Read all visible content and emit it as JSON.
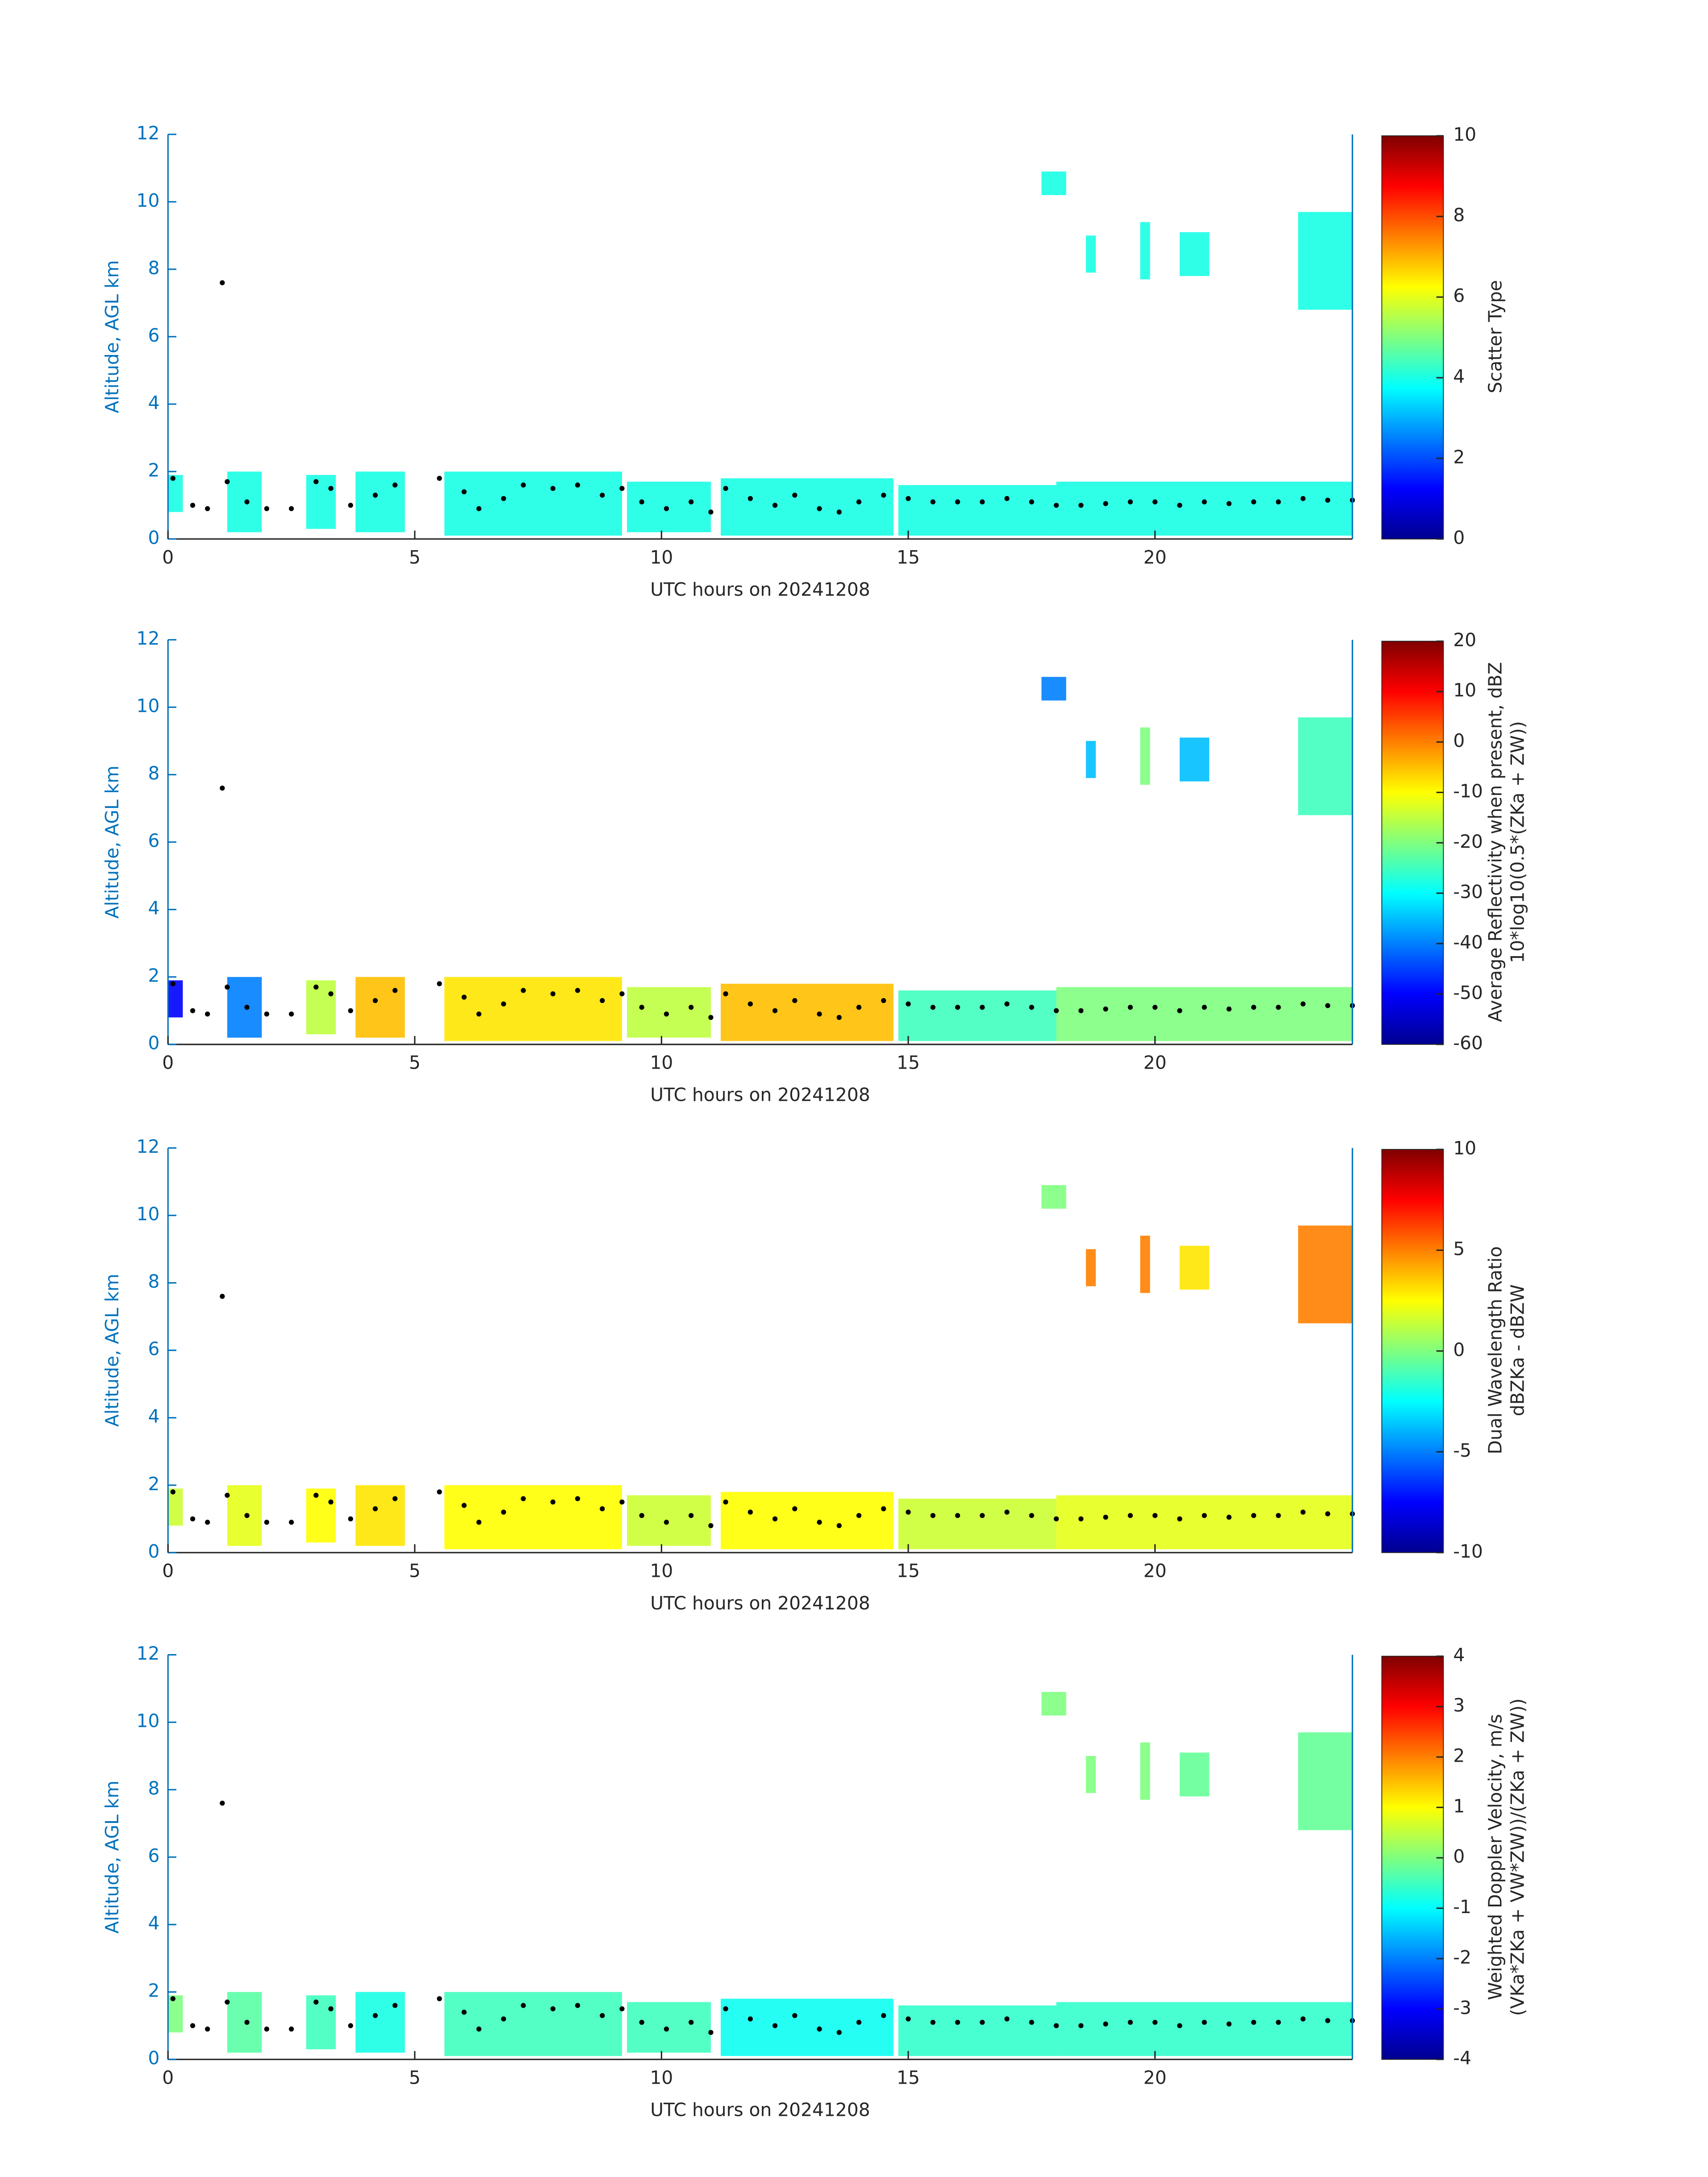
{
  "chart_data": [
    {
      "type": "radar",
      "xlabel": "UTC hours on 20241208",
      "ylabel": "Altitude, AGL km",
      "xlim": [
        0,
        24
      ],
      "xticks": [
        0,
        5,
        10,
        15,
        20
      ],
      "ylim": [
        0,
        12
      ],
      "yticks": [
        0,
        2,
        4,
        6,
        8,
        10,
        12
      ],
      "clim": [
        0,
        10
      ],
      "cticks": [
        0,
        2,
        4,
        6,
        8,
        10
      ],
      "clabel": [
        "Scatter Type"
      ],
      "echoes": {
        "x0": [
          0,
          1.2,
          2.8,
          3.8,
          5.6,
          9.3,
          11.2,
          14.8,
          18,
          17.7,
          18.6,
          19.7,
          20.5,
          22.9
        ],
        "x1": [
          0.3,
          1.9,
          3.4,
          4.8,
          9.2,
          11,
          14.7,
          18,
          24,
          18.2,
          18.8,
          19.9,
          21.1,
          24
        ],
        "base": [
          0.8,
          0.2,
          0.3,
          0.2,
          0.1,
          0.2,
          0.1,
          0.1,
          0.1,
          10.2,
          7.9,
          7.7,
          7.8,
          6.8
        ],
        "top": [
          1.9,
          2.0,
          1.9,
          2.0,
          2.0,
          1.7,
          1.8,
          1.6,
          1.7,
          10.9,
          9.0,
          9.4,
          9.1,
          9.7
        ],
        "values": [
          4,
          4,
          4,
          4,
          4,
          4,
          4,
          4,
          4,
          4,
          4,
          4,
          4,
          4
        ]
      },
      "cloud_base": {
        "x": [
          0.1,
          0.5,
          0.8,
          1.1,
          1.2,
          1.6,
          2.0,
          2.5,
          3.0,
          3.3,
          3.7,
          4.2,
          4.6,
          5.5,
          6.0,
          6.3,
          6.8,
          7.2,
          7.8,
          8.3,
          8.8,
          9.2,
          9.6,
          10.1,
          10.6,
          11.0,
          11.3,
          11.8,
          12.3,
          12.7,
          13.2,
          13.6,
          14.0,
          14.5,
          15.0,
          15.5,
          16,
          16.5,
          17,
          17.5,
          18,
          18.5,
          19,
          19.5,
          20,
          20.5,
          21,
          21.5,
          22,
          22.5,
          23,
          23.5,
          24
        ],
        "y": [
          1.8,
          1.0,
          0.9,
          7.6,
          1.7,
          1.1,
          0.9,
          0.9,
          1.7,
          1.5,
          1.0,
          1.3,
          1.6,
          1.8,
          1.4,
          0.9,
          1.2,
          1.6,
          1.5,
          1.6,
          1.3,
          1.5,
          1.1,
          0.9,
          1.1,
          0.8,
          1.5,
          1.2,
          1.0,
          1.3,
          0.9,
          0.8,
          1.1,
          1.3,
          1.2,
          1.1,
          1.1,
          1.1,
          1.2,
          1.1,
          1.0,
          1.0,
          1.05,
          1.1,
          1.1,
          1.0,
          1.1,
          1.05,
          1.1,
          1.1,
          1.2,
          1.15,
          1.15
        ]
      }
    },
    {
      "type": "radar",
      "xlabel": "UTC hours on 20241208",
      "ylabel": "Altitude, AGL km",
      "xlim": [
        0,
        24
      ],
      "xticks": [
        0,
        5,
        10,
        15,
        20
      ],
      "ylim": [
        0,
        12
      ],
      "yticks": [
        0,
        2,
        4,
        6,
        8,
        10,
        12
      ],
      "clim": [
        -60,
        20
      ],
      "cticks": [
        -60,
        -50,
        -40,
        -30,
        -20,
        -10,
        0,
        10,
        20
      ],
      "clabel": [
        "Average Reflectivity when present, dBZ",
        "10*log10(0.5*(ZKa + ZW))"
      ],
      "echoes": {
        "x0": [
          0,
          1.2,
          2.8,
          3.8,
          5.6,
          9.3,
          11.2,
          14.8,
          18,
          17.7,
          18.6,
          19.7,
          20.5,
          22.9
        ],
        "x1": [
          0.3,
          1.9,
          3.4,
          4.8,
          9.2,
          11,
          14.7,
          18,
          24,
          18.2,
          18.8,
          19.9,
          21.1,
          24
        ],
        "base": [
          0.8,
          0.2,
          0.3,
          0.2,
          0.1,
          0.2,
          0.1,
          0.1,
          0.1,
          10.2,
          7.9,
          7.7,
          7.8,
          6.8
        ],
        "top": [
          1.9,
          2.0,
          1.9,
          2.0,
          2.0,
          1.7,
          1.8,
          1.6,
          1.7,
          10.9,
          9.0,
          9.4,
          9.1,
          9.7
        ],
        "values": [
          -50,
          -40,
          -15,
          -5,
          -8,
          -15,
          -5,
          -25,
          -20,
          -40,
          -35,
          -20,
          -35,
          -25
        ]
      },
      "cloud_base": {
        "x": [
          0.1,
          0.5,
          0.8,
          1.1,
          1.2,
          1.6,
          2.0,
          2.5,
          3.0,
          3.3,
          3.7,
          4.2,
          4.6,
          5.5,
          6.0,
          6.3,
          6.8,
          7.2,
          7.8,
          8.3,
          8.8,
          9.2,
          9.6,
          10.1,
          10.6,
          11.0,
          11.3,
          11.8,
          12.3,
          12.7,
          13.2,
          13.6,
          14.0,
          14.5,
          15.0,
          15.5,
          16,
          16.5,
          17,
          17.5,
          18,
          18.5,
          19,
          19.5,
          20,
          20.5,
          21,
          21.5,
          22,
          22.5,
          23,
          23.5,
          24
        ],
        "y": [
          1.8,
          1.0,
          0.9,
          7.6,
          1.7,
          1.1,
          0.9,
          0.9,
          1.7,
          1.5,
          1.0,
          1.3,
          1.6,
          1.8,
          1.4,
          0.9,
          1.2,
          1.6,
          1.5,
          1.6,
          1.3,
          1.5,
          1.1,
          0.9,
          1.1,
          0.8,
          1.5,
          1.2,
          1.0,
          1.3,
          0.9,
          0.8,
          1.1,
          1.3,
          1.2,
          1.1,
          1.1,
          1.1,
          1.2,
          1.1,
          1.0,
          1.0,
          1.05,
          1.1,
          1.1,
          1.0,
          1.1,
          1.05,
          1.1,
          1.1,
          1.2,
          1.15,
          1.15
        ]
      }
    },
    {
      "type": "radar",
      "xlabel": "UTC hours on 20241208",
      "ylabel": "Altitude, AGL km",
      "xlim": [
        0,
        24
      ],
      "xticks": [
        0,
        5,
        10,
        15,
        20
      ],
      "ylim": [
        0,
        12
      ],
      "yticks": [
        0,
        2,
        4,
        6,
        8,
        10,
        12
      ],
      "clim": [
        -10,
        10
      ],
      "cticks": [
        -10,
        -5,
        0,
        5,
        10
      ],
      "clabel": [
        "Dual Wavelength Ratio",
        "dBZKa - dBZW"
      ],
      "echoes": {
        "x0": [
          0,
          1.2,
          2.8,
          3.8,
          5.6,
          9.3,
          11.2,
          14.8,
          18,
          17.7,
          18.6,
          19.7,
          20.5,
          22.9
        ],
        "x1": [
          0.3,
          1.9,
          3.4,
          4.8,
          9.2,
          11,
          14.7,
          18,
          24,
          18.2,
          18.8,
          19.9,
          21.1,
          24
        ],
        "base": [
          0.8,
          0.2,
          0.3,
          0.2,
          0.1,
          0.2,
          0.1,
          0.1,
          0.1,
          10.2,
          7.9,
          7.7,
          7.8,
          6.8
        ],
        "top": [
          1.9,
          2.0,
          1.9,
          2.0,
          2.0,
          1.7,
          1.8,
          1.6,
          1.7,
          10.9,
          9.0,
          9.4,
          9.1,
          9.7
        ],
        "values": [
          1.5,
          2,
          2.5,
          3,
          2.5,
          1.5,
          2.5,
          1.5,
          2,
          0,
          5,
          5,
          3,
          5
        ]
      },
      "cloud_base": {
        "x": [
          0.1,
          0.5,
          0.8,
          1.1,
          1.2,
          1.6,
          2.0,
          2.5,
          3.0,
          3.3,
          3.7,
          4.2,
          4.6,
          5.5,
          6.0,
          6.3,
          6.8,
          7.2,
          7.8,
          8.3,
          8.8,
          9.2,
          9.6,
          10.1,
          10.6,
          11.0,
          11.3,
          11.8,
          12.3,
          12.7,
          13.2,
          13.6,
          14.0,
          14.5,
          15.0,
          15.5,
          16,
          16.5,
          17,
          17.5,
          18,
          18.5,
          19,
          19.5,
          20,
          20.5,
          21,
          21.5,
          22,
          22.5,
          23,
          23.5,
          24
        ],
        "y": [
          1.8,
          1.0,
          0.9,
          7.6,
          1.7,
          1.1,
          0.9,
          0.9,
          1.7,
          1.5,
          1.0,
          1.3,
          1.6,
          1.8,
          1.4,
          0.9,
          1.2,
          1.6,
          1.5,
          1.6,
          1.3,
          1.5,
          1.1,
          0.9,
          1.1,
          0.8,
          1.5,
          1.2,
          1.0,
          1.3,
          0.9,
          0.8,
          1.1,
          1.3,
          1.2,
          1.1,
          1.1,
          1.1,
          1.2,
          1.1,
          1.0,
          1.0,
          1.05,
          1.1,
          1.1,
          1.0,
          1.1,
          1.05,
          1.1,
          1.1,
          1.2,
          1.15,
          1.15
        ]
      }
    },
    {
      "type": "radar",
      "xlabel": "UTC hours on 20241208",
      "ylabel": "Altitude, AGL km",
      "xlim": [
        0,
        24
      ],
      "xticks": [
        0,
        5,
        10,
        15,
        20
      ],
      "ylim": [
        0,
        12
      ],
      "yticks": [
        0,
        2,
        4,
        6,
        8,
        10,
        12
      ],
      "clim": [
        -4,
        4
      ],
      "cticks": [
        -4,
        -3,
        -2,
        -1,
        0,
        1,
        2,
        3,
        4
      ],
      "clabel": [
        "Weighted Doppler Velocity, m/s",
        "(VKa*ZKa + VW*ZW))/(ZKa + ZW))"
      ],
      "echoes": {
        "x0": [
          0,
          1.2,
          2.8,
          3.8,
          5.6,
          9.3,
          11.2,
          14.8,
          18,
          17.7,
          18.6,
          19.7,
          20.5,
          22.9
        ],
        "x1": [
          0.3,
          1.9,
          3.4,
          4.8,
          9.2,
          11,
          14.7,
          18,
          24,
          18.2,
          18.8,
          19.9,
          21.1,
          24
        ],
        "base": [
          0.8,
          0.2,
          0.3,
          0.2,
          0.1,
          0.2,
          0.1,
          0.1,
          0.1,
          10.2,
          7.9,
          7.7,
          7.8,
          6.8
        ],
        "top": [
          1.9,
          2.0,
          1.9,
          2.0,
          2.0,
          1.7,
          1.8,
          1.6,
          1.7,
          10.9,
          9.0,
          9.4,
          9.1,
          9.7
        ],
        "values": [
          0,
          -0.3,
          -0.5,
          -0.8,
          -0.5,
          -0.5,
          -0.9,
          -0.6,
          -0.6,
          0,
          0,
          0,
          -0.2,
          -0.2
        ]
      },
      "cloud_base": {
        "x": [
          0.1,
          0.5,
          0.8,
          1.1,
          1.2,
          1.6,
          2.0,
          2.5,
          3.0,
          3.3,
          3.7,
          4.2,
          4.6,
          5.5,
          6.0,
          6.3,
          6.8,
          7.2,
          7.8,
          8.3,
          8.8,
          9.2,
          9.6,
          10.1,
          10.6,
          11.0,
          11.3,
          11.8,
          12.3,
          12.7,
          13.2,
          13.6,
          14.0,
          14.5,
          15.0,
          15.5,
          16,
          16.5,
          17,
          17.5,
          18,
          18.5,
          19,
          19.5,
          20,
          20.5,
          21,
          21.5,
          22,
          22.5,
          23,
          23.5,
          24
        ],
        "y": [
          1.8,
          1.0,
          0.9,
          7.6,
          1.7,
          1.1,
          0.9,
          0.9,
          1.7,
          1.5,
          1.0,
          1.3,
          1.6,
          1.8,
          1.4,
          0.9,
          1.2,
          1.6,
          1.5,
          1.6,
          1.3,
          1.5,
          1.1,
          0.9,
          1.1,
          0.8,
          1.5,
          1.2,
          1.0,
          1.3,
          0.9,
          0.8,
          1.1,
          1.3,
          1.2,
          1.1,
          1.1,
          1.1,
          1.2,
          1.1,
          1.0,
          1.0,
          1.05,
          1.1,
          1.1,
          1.0,
          1.1,
          1.05,
          1.1,
          1.1,
          1.2,
          1.15,
          1.15
        ]
      }
    }
  ]
}
